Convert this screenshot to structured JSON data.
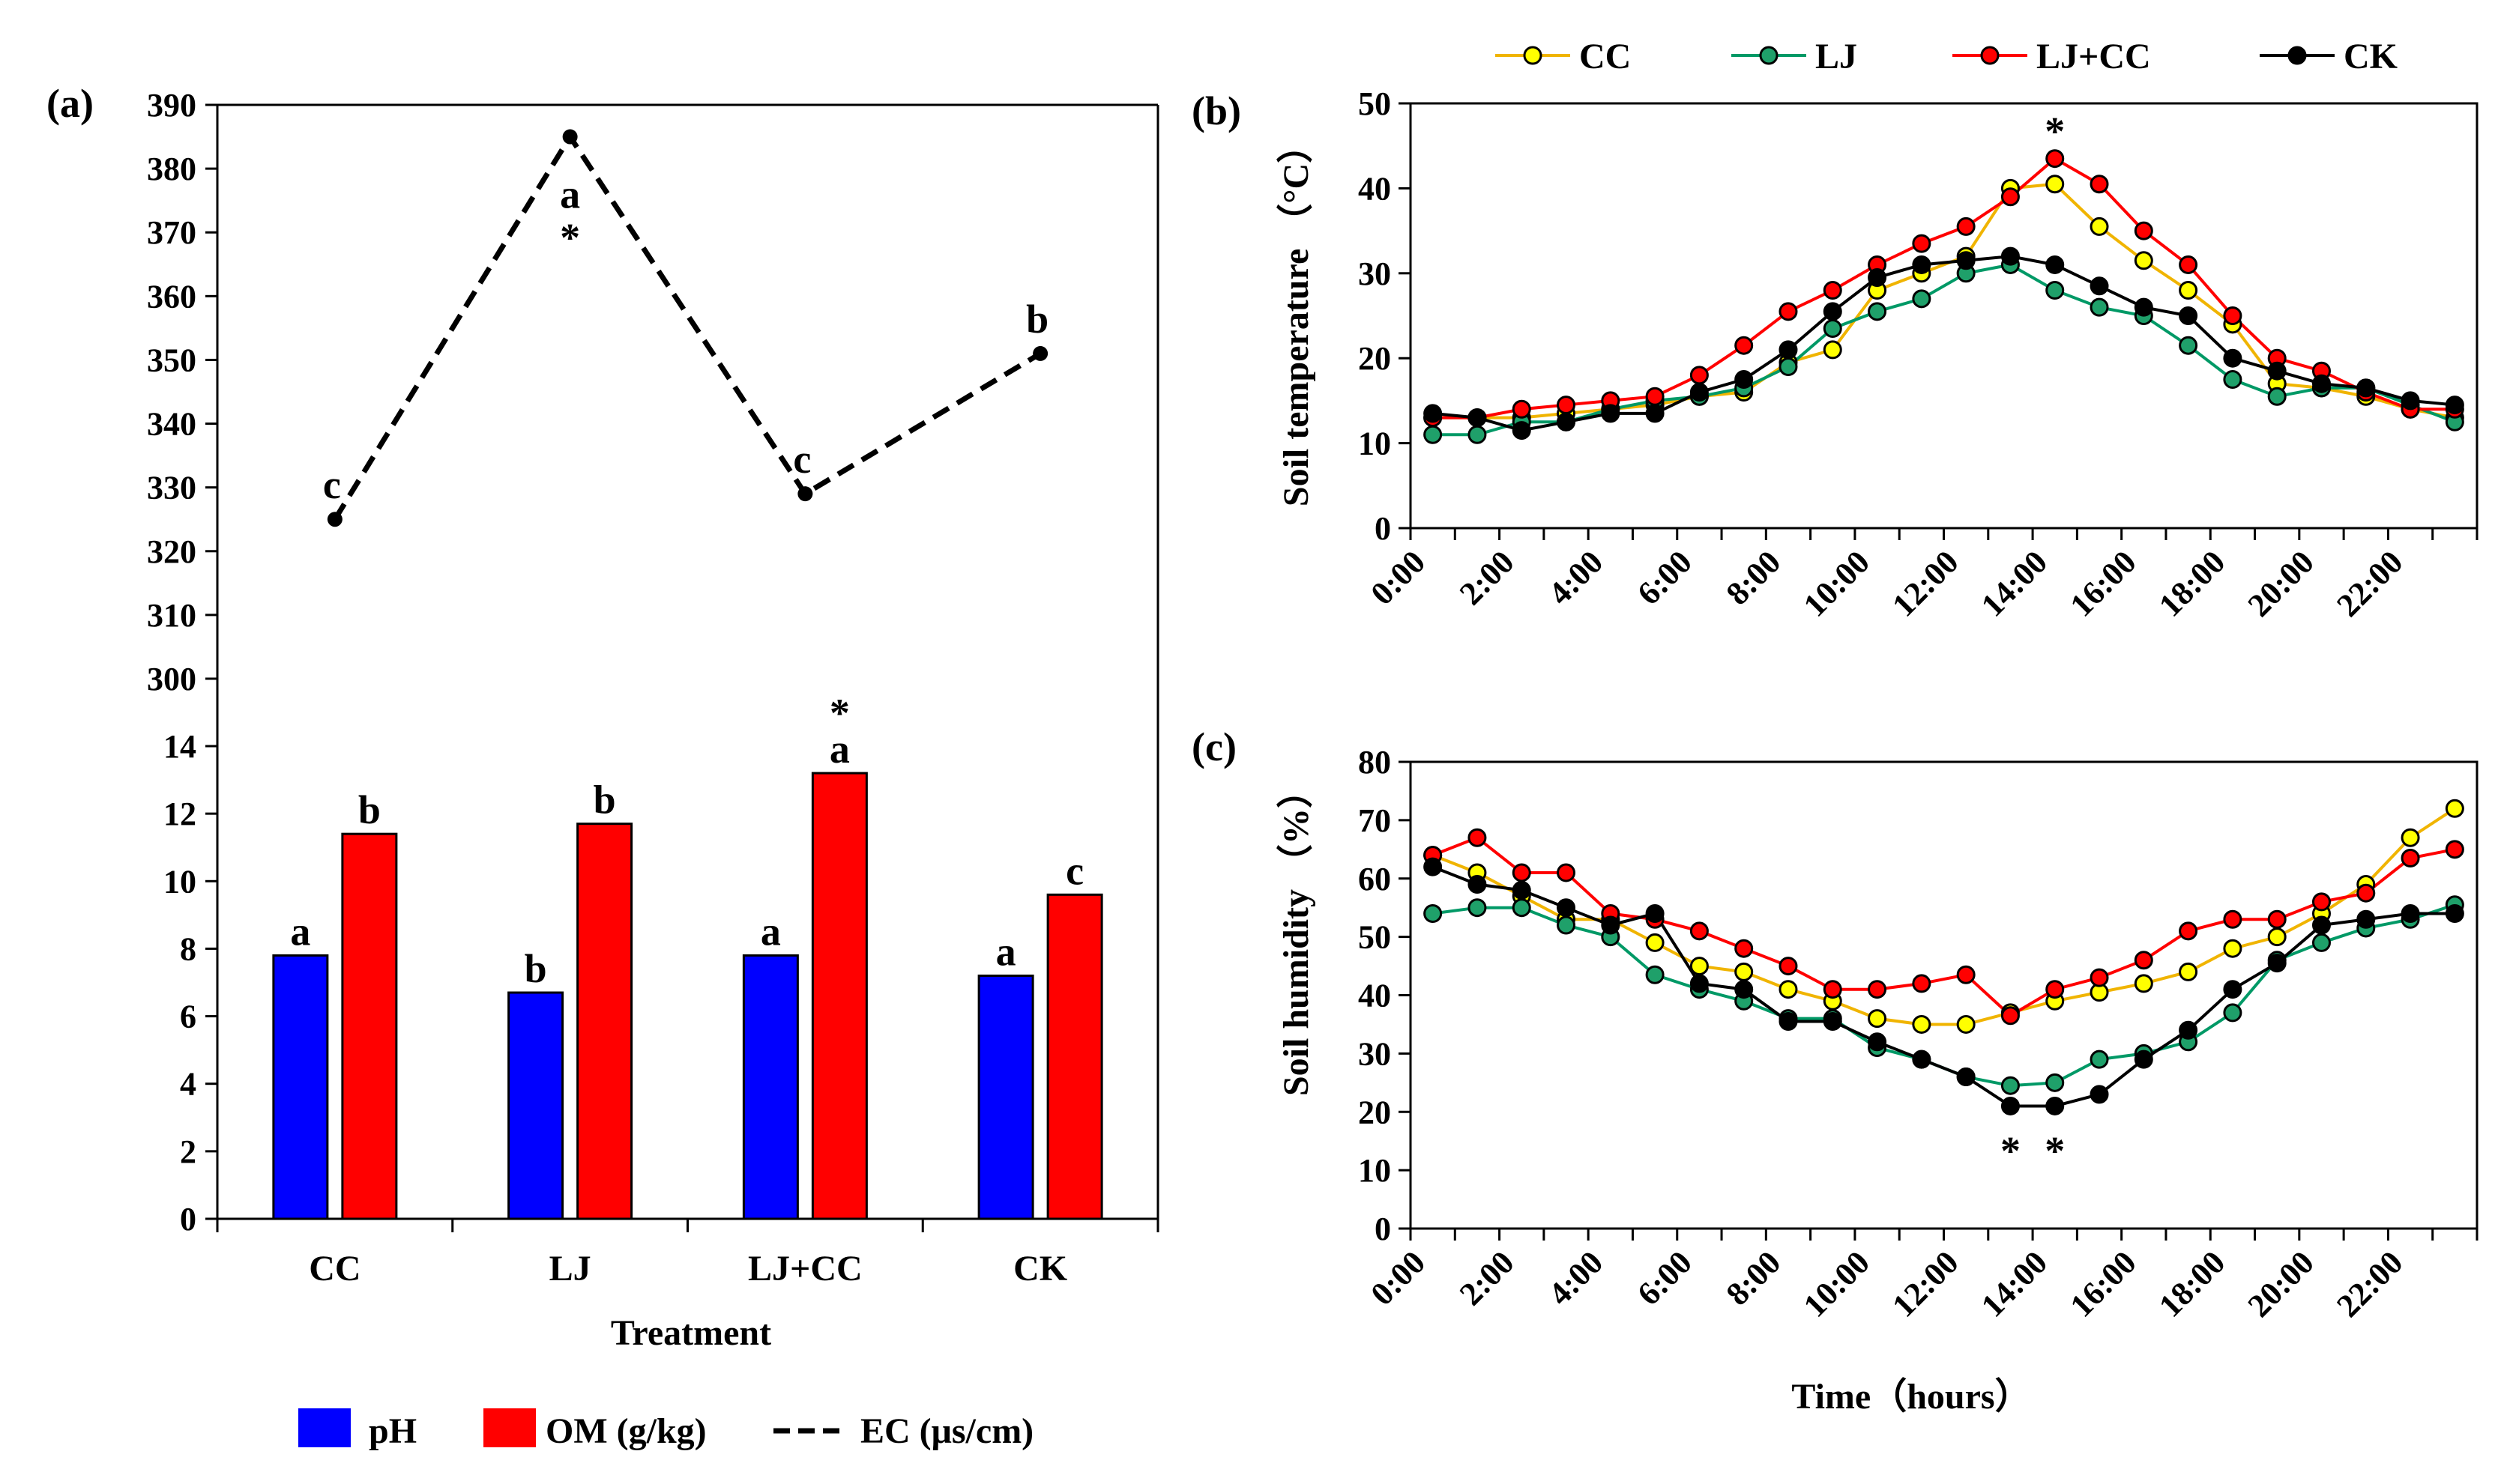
{
  "chart_data": [
    {
      "panel": "(a)",
      "type": "line",
      "series_name": "EC (μs/cm)",
      "line_style": "dashed",
      "categories": [
        "CC",
        "LJ",
        "LJ+CC",
        "CK"
      ],
      "values": [
        325,
        385,
        329,
        351
      ],
      "letters": [
        "c",
        "a",
        "c",
        "b"
      ],
      "stars": [
        "",
        "*",
        "",
        ""
      ],
      "ylim": [
        300,
        390
      ],
      "yticks": [
        "300",
        "310",
        "320",
        "330",
        "340",
        "350",
        "360",
        "370",
        "380",
        "390"
      ],
      "color": "#000000"
    },
    {
      "panel": "(a)",
      "type": "bar",
      "categories": [
        "CC",
        "LJ",
        "LJ+CC",
        "CK"
      ],
      "xlabel": "Treatment",
      "ylim": [
        0,
        14
      ],
      "yticks": [
        "0",
        "2",
        "4",
        "6",
        "8",
        "10",
        "12",
        "14"
      ],
      "series": [
        {
          "name": "pH",
          "color": "#0000ff",
          "values": [
            7.8,
            6.7,
            7.8,
            7.2
          ],
          "letters": [
            "a",
            "b",
            "a",
            "a"
          ],
          "stars": [
            "",
            "",
            "",
            ""
          ]
        },
        {
          "name": "OM (g/kg)",
          "color": "#ff0000",
          "values": [
            11.4,
            11.7,
            13.2,
            9.6
          ],
          "letters": [
            "b",
            "b",
            "a",
            "c"
          ],
          "stars": [
            "",
            "",
            "*",
            ""
          ]
        }
      ],
      "legend": [
        "pH",
        "OM (g/kg)",
        "EC (μs/cm)"
      ]
    },
    {
      "panel": "(b)",
      "type": "line",
      "ylabel": "Soil temperature （°C）",
      "ylim": [
        0,
        50
      ],
      "yticks": [
        "0",
        "10",
        "20",
        "30",
        "40",
        "50"
      ],
      "xticks": [
        "0:00",
        "2:00",
        "4:00",
        "6:00",
        "8:00",
        "10:00",
        "12:00",
        "14:00",
        "16:00",
        "18:00",
        "20:00",
        "22:00"
      ],
      "hours": [
        0.5,
        1.5,
        2.5,
        3.5,
        4.5,
        5.5,
        6.5,
        7.5,
        8.5,
        9.5,
        10.5,
        11.5,
        12.5,
        13.5,
        14.5,
        15.5,
        16.5,
        17.5,
        18.5,
        19.5,
        20.5,
        21.5,
        22.5,
        23.5
      ],
      "series": [
        {
          "name": "CC",
          "color": "#ffff00",
          "line": "#f0b400",
          "values": [
            13,
            13,
            13,
            13.5,
            14,
            14.5,
            15.5,
            16,
            19.5,
            21,
            28,
            30,
            32,
            40,
            40.5,
            35.5,
            31.5,
            28,
            24,
            17,
            16.5,
            15.5,
            14,
            13
          ]
        },
        {
          "name": "LJ",
          "color": "#1fa06a",
          "line": "#009966",
          "values": [
            11,
            11,
            12.5,
            12.5,
            14,
            15,
            15.5,
            16.5,
            19,
            23.5,
            25.5,
            27,
            30,
            31,
            28,
            26,
            25,
            21.5,
            17.5,
            15.5,
            16.5,
            16.5,
            14.5,
            12.5
          ]
        },
        {
          "name": "LJ+CC",
          "color": "#ff0000",
          "line": "#ff0000",
          "values": [
            13,
            13,
            14,
            14.5,
            15,
            15.5,
            18,
            21.5,
            25.5,
            28,
            31,
            33.5,
            35.5,
            39,
            43.5,
            40.5,
            35,
            31,
            25,
            20,
            18.5,
            16,
            14,
            14
          ]
        },
        {
          "name": "CK",
          "color": "#000000",
          "line": "#000000",
          "values": [
            13.5,
            13,
            11.5,
            12.5,
            13.5,
            13.5,
            16,
            17.5,
            21,
            25.5,
            29.5,
            31,
            31.5,
            32,
            31,
            28.5,
            26,
            25,
            20,
            18.5,
            17,
            16.5,
            15,
            14.5
          ]
        }
      ],
      "stars": [
        {
          "hour": 14.5,
          "series": "LJ+CC",
          "label": "*"
        }
      ],
      "legend": [
        "CC",
        "LJ",
        "LJ+CC",
        "CK"
      ]
    },
    {
      "panel": "(c)",
      "type": "line",
      "xlabel": "Time（hours）",
      "ylabel": "Soil humidity （%）",
      "ylim": [
        0,
        80
      ],
      "yticks": [
        "0",
        "10",
        "20",
        "30",
        "40",
        "50",
        "60",
        "70",
        "80"
      ],
      "xticks": [
        "0:00",
        "2:00",
        "4:00",
        "6:00",
        "8:00",
        "10:00",
        "12:00",
        "14:00",
        "16:00",
        "18:00",
        "20:00",
        "22:00"
      ],
      "hours": [
        0.5,
        1.5,
        2.5,
        3.5,
        4.5,
        5.5,
        6.5,
        7.5,
        8.5,
        9.5,
        10.5,
        11.5,
        12.5,
        13.5,
        14.5,
        15.5,
        16.5,
        17.5,
        18.5,
        19.5,
        20.5,
        21.5,
        22.5,
        23.5
      ],
      "series": [
        {
          "name": "CC",
          "color": "#ffff00",
          "line": "#f0b400",
          "values": [
            64,
            61,
            57,
            53,
            53,
            49,
            45,
            44,
            41,
            39,
            36,
            35,
            35,
            37,
            39,
            40.5,
            42,
            44,
            48,
            50,
            54,
            59,
            67,
            72
          ]
        },
        {
          "name": "LJ",
          "color": "#1fa06a",
          "line": "#009966",
          "values": [
            54,
            55,
            55,
            52,
            50,
            43.5,
            41,
            39,
            36,
            36,
            31,
            29,
            26,
            24.5,
            25,
            29,
            30,
            32,
            37,
            46,
            49,
            51.5,
            53,
            55.5
          ]
        },
        {
          "name": "LJ+CC",
          "color": "#ff0000",
          "line": "#ff0000",
          "values": [
            64,
            67,
            61,
            61,
            54,
            53,
            51,
            48,
            45,
            41,
            41,
            42,
            43.5,
            36.5,
            41,
            43,
            46,
            51,
            53,
            53,
            56,
            57.5,
            63.5,
            65
          ]
        },
        {
          "name": "CK",
          "color": "#000000",
          "line": "#000000",
          "values": [
            62,
            59,
            58,
            55,
            52,
            54,
            42,
            41,
            35.5,
            35.5,
            32,
            29,
            26,
            21,
            21,
            23,
            29,
            34,
            41,
            45.5,
            52,
            53,
            54,
            54
          ]
        }
      ],
      "stars": [
        {
          "hour": 13.5,
          "series": "CK",
          "label": "*"
        },
        {
          "hour": 14.5,
          "series": "CK",
          "label": "*"
        }
      ]
    }
  ],
  "panels": {
    "a": "(a)",
    "b": "(b)",
    "c": "(c)"
  }
}
